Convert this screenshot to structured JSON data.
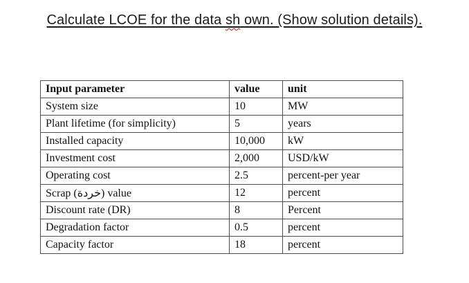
{
  "title": {
    "prefix": "Calculate LCOE for the data ",
    "misspelled_word": "sh",
    "suffix": " own. (Show solution details)."
  },
  "table": {
    "headers": {
      "parameter": "Input parameter",
      "value": "value",
      "unit": "unit"
    },
    "rows": [
      {
        "parameter": "System size",
        "value": "10",
        "unit": "MW"
      },
      {
        "parameter": "Plant lifetime (for simplicity)",
        "value": "5",
        "unit": "years"
      },
      {
        "parameter": "Installed capacity",
        "value": "10,000",
        "unit": "kW"
      },
      {
        "parameter": "Investment cost",
        "value": "2,000",
        "unit": "USD/kW"
      },
      {
        "parameter": "Operating cost",
        "value": "2.5",
        "unit": "percent-per year"
      },
      {
        "parameter": "Scrap (خردة) value",
        "value": "12",
        "unit": "percent"
      },
      {
        "parameter": "Discount rate (DR)",
        "value": "8",
        "unit": "Percent"
      },
      {
        "parameter": "Degradation factor",
        "value": "0.5",
        "unit": "percent"
      },
      {
        "parameter": "Capacity factor",
        "value": "18",
        "unit": "percent"
      }
    ]
  },
  "colors": {
    "page_background": "#ffffff",
    "text": "#111111",
    "title_text": "#1c1c1c",
    "table_border": "#4f4f4f",
    "spellcheck_squiggle": "#cc1111"
  }
}
